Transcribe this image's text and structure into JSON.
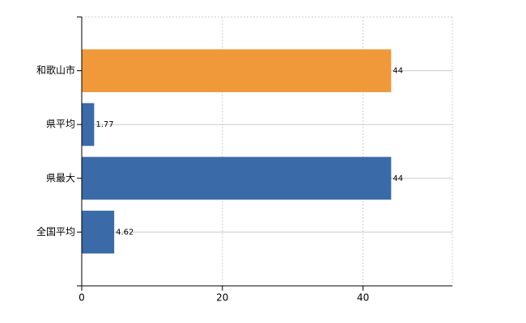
{
  "chart_data": {
    "type": "bar",
    "orientation": "horizontal",
    "categories": [
      "和歌山市",
      "県平均",
      "県最大",
      "全国平均"
    ],
    "values": [
      44,
      1.77,
      44,
      4.62
    ],
    "colors": [
      "#f0993b",
      "#3b6aa8",
      "#3b6aa8",
      "#3b6aa8"
    ],
    "xlim": [
      0,
      52.7
    ],
    "xticks": [
      0,
      20,
      40
    ],
    "grid": true
  }
}
